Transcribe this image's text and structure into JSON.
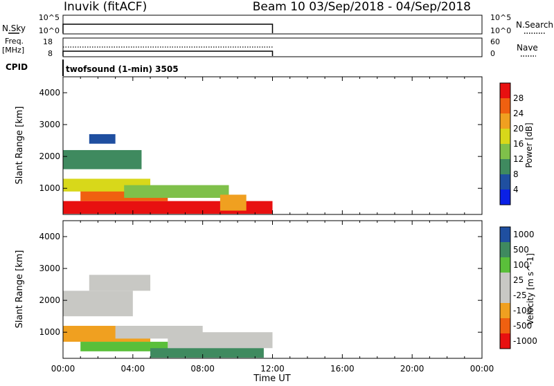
{
  "header": {
    "title": "Inuvik (fitACF)",
    "beam_info": "Beam 10 03/Sep/2018 - 04/Sep/2018"
  },
  "colors": {
    "power": [
      "#0a20e6",
      "#1f4fa0",
      "#3f8a5f",
      "#7fc04a",
      "#d8d81a",
      "#f0a020",
      "#f06010",
      "#e81010"
    ],
    "velocity": [
      "#e81010",
      "#f06010",
      "#f0a020",
      "#c8c8c4",
      "#c8c8c4",
      "#5abf3a",
      "#3f8a5f",
      "#1f4fa0"
    ]
  },
  "chart_data": [
    {
      "type": "line",
      "panel": "noise",
      "left_label": "N.Sky",
      "right_label": "N.Search",
      "left_ticks": [
        "10^5",
        "10^0"
      ],
      "right_ticks": [
        "10^5",
        "10^0"
      ],
      "x_range_hours": [
        0,
        24
      ],
      "data_range_hours": [
        0,
        12
      ],
      "series": [
        {
          "name": "N.Sky",
          "style": "solid"
        },
        {
          "name": "N.Search",
          "style": "dotted"
        }
      ]
    },
    {
      "type": "line",
      "panel": "frequency",
      "left_label_line1": "Freq.",
      "left_label_line2": "[MHz]",
      "right_label": "Nave",
      "left_ticks": [
        18,
        8
      ],
      "right_ticks": [
        60,
        0
      ],
      "bottom_label": "CPID",
      "cpid_text": "twofsound (1-min) 3505",
      "x_range_hours": [
        0,
        24
      ],
      "data_range_hours": [
        0,
        12
      ],
      "series": [
        {
          "name": "Freq.",
          "style": "solid"
        },
        {
          "name": "Nave",
          "style": "dotted"
        }
      ]
    },
    {
      "type": "heatmap",
      "panel": "power",
      "ylabel": "Slant Range [km]",
      "ylim": [
        180,
        4500
      ],
      "y_ticks": [
        1000,
        2000,
        3000,
        4000
      ],
      "x_range_hours": [
        0,
        24
      ],
      "colorbar": {
        "label": "Power [dB]",
        "range": [
          0,
          32
        ],
        "ticks": [
          4,
          8,
          12,
          16,
          20,
          24,
          28
        ]
      },
      "regions": [
        {
          "x0": 0.0,
          "x1": 12.0,
          "y0": 200,
          "y1": 600,
          "level": 7
        },
        {
          "x0": 1.0,
          "x1": 6.0,
          "y0": 600,
          "y1": 1000,
          "level": 6
        },
        {
          "x0": 0.0,
          "x1": 5.0,
          "y0": 900,
          "y1": 1300,
          "level": 4
        },
        {
          "x0": 3.5,
          "x1": 9.5,
          "y0": 700,
          "y1": 1100,
          "level": 3
        },
        {
          "x0": 0.0,
          "x1": 4.5,
          "y0": 1600,
          "y1": 2200,
          "level": 2
        },
        {
          "x0": 1.5,
          "x1": 3.0,
          "y0": 2400,
          "y1": 2700,
          "level": 1
        },
        {
          "x0": 9.0,
          "x1": 10.5,
          "y0": 300,
          "y1": 800,
          "level": 5
        }
      ]
    },
    {
      "type": "heatmap",
      "panel": "velocity",
      "ylabel": "Slant Range [km]",
      "ylim": [
        180,
        4500
      ],
      "y_ticks": [
        1000,
        2000,
        3000,
        4000
      ],
      "x_range_hours": [
        0,
        24
      ],
      "colorbar": {
        "label": "Velocity [m s^-1]",
        "tick_labels": [
          "1000",
          "500",
          "100",
          "25",
          "-25",
          "-100",
          "-500",
          "-1000"
        ]
      },
      "regions": [
        {
          "x0": 0.0,
          "x1": 4.0,
          "y0": 1500,
          "y1": 2300,
          "level": 3
        },
        {
          "x0": 1.5,
          "x1": 5.0,
          "y0": 2300,
          "y1": 2800,
          "level": 3
        },
        {
          "x0": 0.0,
          "x1": 5.0,
          "y0": 700,
          "y1": 1200,
          "level": 2
        },
        {
          "x0": 3.0,
          "x1": 8.0,
          "y0": 800,
          "y1": 1200,
          "level": 4
        },
        {
          "x0": 6.0,
          "x1": 12.0,
          "y0": 500,
          "y1": 1000,
          "level": 3
        },
        {
          "x0": 1.0,
          "x1": 6.0,
          "y0": 400,
          "y1": 700,
          "level": 5
        },
        {
          "x0": 5.0,
          "x1": 11.5,
          "y0": 200,
          "y1": 500,
          "level": 6
        }
      ]
    }
  ],
  "time_axis": {
    "label": "Time UT",
    "ticks": [
      "00:00",
      "04:00",
      "08:00",
      "12:00",
      "16:00",
      "20:00",
      "00:00"
    ]
  }
}
